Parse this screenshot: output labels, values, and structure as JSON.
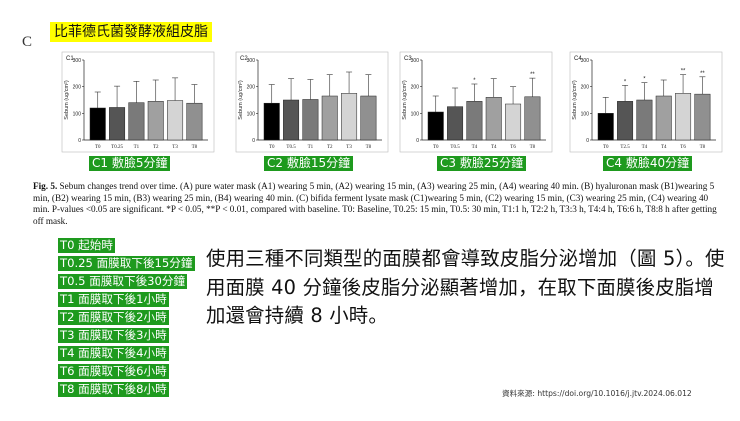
{
  "panel_letter": "C",
  "title_banner": "比菲德氏菌發酵液組皮脂",
  "chart_data": [
    {
      "type": "bar",
      "panel": "C1",
      "ylabel": "Sebum (ug/cm²)",
      "categories": [
        "T0",
        "T0.25",
        "T1",
        "T2",
        "T3",
        "T8"
      ],
      "values": [
        120,
        122,
        140,
        145,
        148,
        138
      ],
      "errors": [
        60,
        80,
        80,
        80,
        85,
        70
      ],
      "ylim": [
        0,
        300
      ],
      "yticks": [
        0,
        100,
        200,
        300
      ],
      "significance": [
        "",
        "",
        "",
        "",
        "",
        ""
      ],
      "label": "C1 敷臉5分鐘"
    },
    {
      "type": "bar",
      "panel": "C2",
      "ylabel": "Sebum (ug/cm²)",
      "categories": [
        "T0",
        "T0.5",
        "T1",
        "T2",
        "T3",
        "T8"
      ],
      "values": [
        138,
        150,
        152,
        165,
        175,
        165
      ],
      "errors": [
        70,
        80,
        75,
        80,
        80,
        80
      ],
      "ylim": [
        0,
        300
      ],
      "yticks": [
        0,
        100,
        200,
        300
      ],
      "significance": [
        "",
        "",
        "",
        "",
        "",
        ""
      ],
      "label": "C2 敷臉15分鐘"
    },
    {
      "type": "bar",
      "panel": "C3",
      "ylabel": "Sebum (ug/cm²)",
      "categories": [
        "T0",
        "T0.5",
        "T4",
        "T4",
        "T6",
        "T8"
      ],
      "values": [
        105,
        125,
        145,
        160,
        135,
        162
      ],
      "errors": [
        60,
        70,
        65,
        70,
        65,
        70
      ],
      "ylim": [
        0,
        300
      ],
      "yticks": [
        0,
        100,
        200,
        300
      ],
      "significance": [
        "",
        "",
        "*",
        "",
        "",
        "**"
      ],
      "label": "C3 敷臉25分鐘"
    },
    {
      "type": "bar",
      "panel": "C4",
      "ylabel": "Sebum (ug/cm²)",
      "categories": [
        "T0",
        "T2.5",
        "T4",
        "T4",
        "T6",
        "T8"
      ],
      "values": [
        100,
        145,
        150,
        165,
        175,
        172
      ],
      "errors": [
        60,
        60,
        65,
        60,
        70,
        65
      ],
      "ylim": [
        0,
        300
      ],
      "yticks": [
        0,
        100,
        200,
        300
      ],
      "significance": [
        "",
        "*",
        "*",
        "",
        "**",
        "**"
      ],
      "label": "C4 敷臉40分鐘"
    }
  ],
  "caption": {
    "fig_label": "Fig. 5.",
    "text": "Sebum changes trend over time. (A) pure water mask (A1) wearing 5 min, (A2) wearing 15 min, (A3) wearing 25 min, (A4) wearing 40 min. (B) hyaluronan mask (B1)wearing 5 min, (B2) wearing 15 min, (B3) wearing 25 min, (B4) wearing 40 min. (C) bifida ferment lysate mask (C1)wearing 5 min, (C2) wearing 15 min, (C3) wearing 25 min, (C4) wearing 40 min. P-values <0.05 are significant. *P < 0.05, **P < 0.01, compared with baseline. T0: Baseline, T0.25: 15 min, T0.5: 30 min, T1:1 h, T2:2 h, T3:3 h, T4:4 h, T6:6 h, T8:8 h after getting off mask."
  },
  "legend": [
    "T0 起始時",
    "T0.25 面膜取下後15分鐘",
    "T0.5 面膜取下後30分鐘",
    "T1 面膜取下後1小時",
    "T2 面膜取下後2小時",
    "T3 面膜取下後3小時",
    "T4 面膜取下後4小時",
    "T6 面膜取下後6小時",
    "T8 面膜取下後8小時"
  ],
  "summary": "使用三種不同類型的面膜都會導致皮脂分泌增加（圖 5）。使用面膜 40 分鐘後皮脂分泌顯著增加，在取下面膜後皮脂增加還會持續 8 小時。",
  "source": "資料來源: https://doi.org/10.1016/j.jtv.2024.06.012",
  "colors": {
    "bar_fills": [
      "#000000",
      "#555555",
      "#7a7a7a",
      "#a0a0a0",
      "#d4d4d4",
      "#909090"
    ],
    "label_bg": "#1e9a1e",
    "banner_bg": "#ffff00"
  }
}
